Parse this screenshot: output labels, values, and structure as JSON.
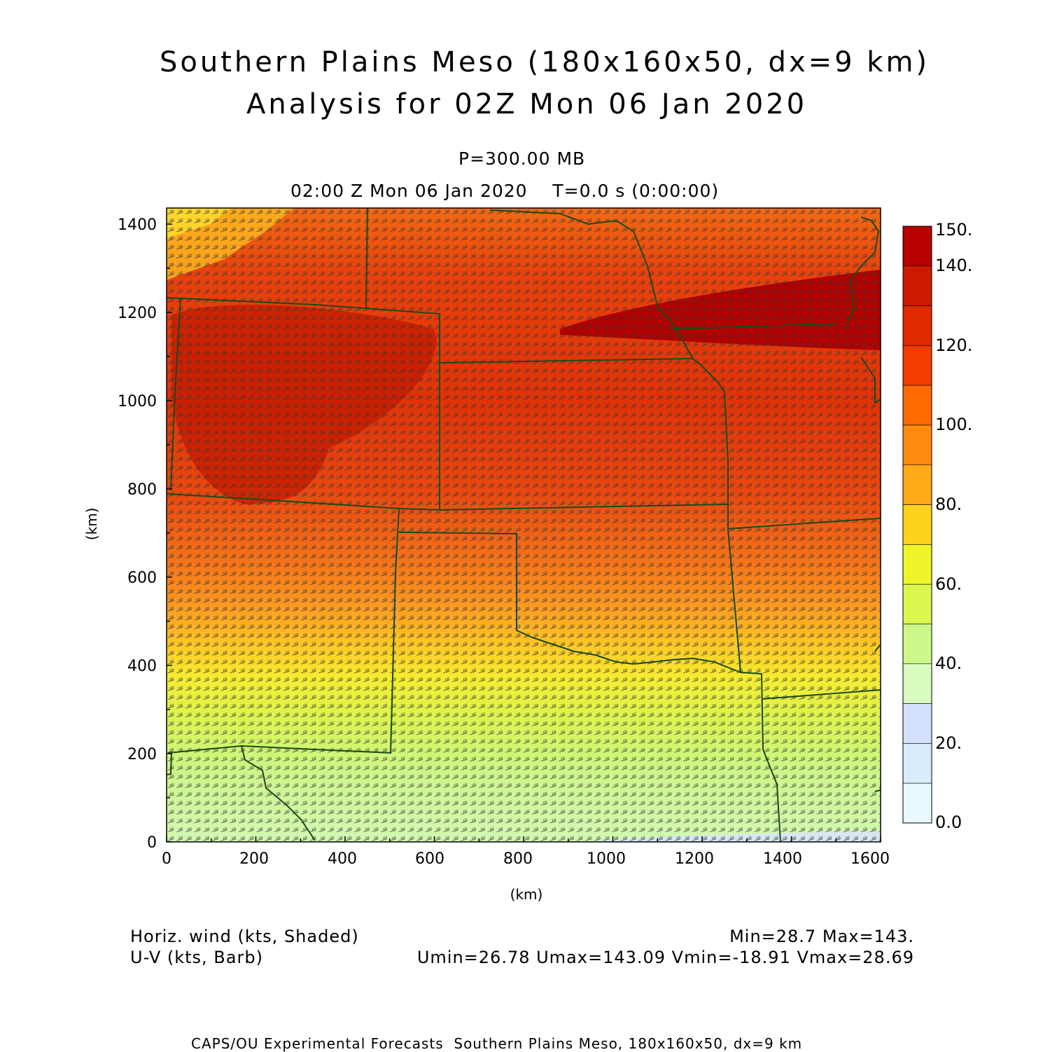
{
  "header": {
    "title_line1": "Southern Plains Meso (180x160x50, dx=9 km)",
    "title_line2": "Analysis for 02Z Mon 06 Jan 2020",
    "level": "P=300.00 MB",
    "valid_time": "02:00 Z Mon 06 Jan 2020    T=0.0 s (0:00:00)"
  },
  "axes": {
    "x_unit": "(km)",
    "y_unit": "(km)",
    "x_ticks": [
      "0",
      "200",
      "400",
      "600",
      "800",
      "1000",
      "1200",
      "1400",
      "1600"
    ],
    "y_ticks": [
      "0",
      "200",
      "400",
      "600",
      "800",
      "1000",
      "1200",
      "1400"
    ]
  },
  "colorbar": {
    "labels": [
      "150.",
      "140.",
      "120.",
      "100.",
      "80.",
      "60.",
      "40.",
      "20.",
      "0.0"
    ],
    "colors": [
      "#b80000",
      "#cc1a00",
      "#e02a00",
      "#f23c00",
      "#ff6a00",
      "#ff8a10",
      "#ffaa18",
      "#ffd21e",
      "#f0f52a",
      "#dcf650",
      "#ccf88a",
      "#d8fcc0",
      "#d4e0fa",
      "#d8ecfc",
      "#e8f8ff"
    ]
  },
  "legend": {
    "shaded_label": "Horiz. wind (kts, Shaded)",
    "barb_label": "U-V (kts, Barb)",
    "minmax": "Min=28.7 Max=143.",
    "uv_stats": "Umin=26.78 Umax=143.09 Vmin=-18.91 Vmax=28.69"
  },
  "footer": "CAPS/OU Experimental Forecasts  Southern Plains Meso, 180x160x50, dx=9 km"
}
